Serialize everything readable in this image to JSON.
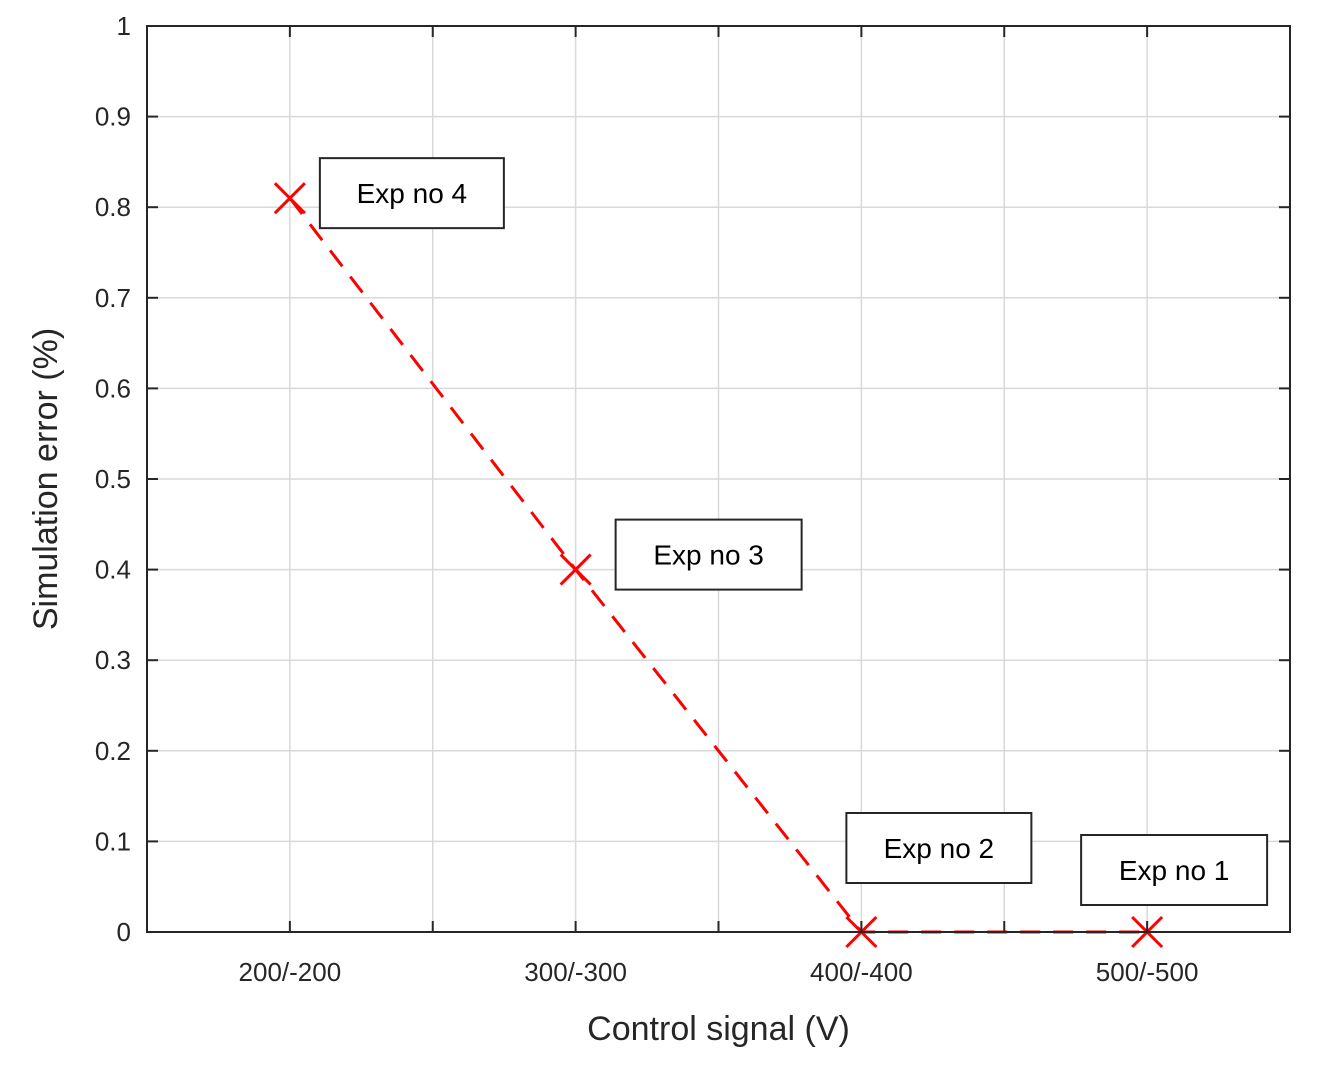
{
  "chart_data": {
    "type": "line",
    "xlabel": "Control signal (V)",
    "ylabel": "Simulation error (%)",
    "categories": [
      "200/-200",
      "300/-300",
      "400/-400",
      "500/-500"
    ],
    "ylim": [
      0,
      1
    ],
    "yticks": [
      0,
      0.1,
      0.2,
      0.3,
      0.4,
      0.5,
      0.6,
      0.7,
      0.8,
      0.9,
      1
    ],
    "ytick_labels": [
      "0",
      "0.1",
      "0.2",
      "0.3",
      "0.4",
      "0.5",
      "0.6",
      "0.7",
      "0.8",
      "0.9",
      "1"
    ],
    "grid": true,
    "series": [
      {
        "values": [
          0.81,
          0.4,
          0,
          0
        ],
        "color": "#ff0000",
        "line_style": "dashed",
        "marker": "x"
      }
    ],
    "annotations": [
      {
        "text": "Exp no 4",
        "category": "200/-200",
        "value": 0.81
      },
      {
        "text": "Exp no 3",
        "category": "300/-300",
        "value": 0.4
      },
      {
        "text": "Exp no 2",
        "category": "400/-400",
        "value": 0
      },
      {
        "text": "Exp no 1",
        "category": "500/-500",
        "value": 0
      }
    ]
  }
}
